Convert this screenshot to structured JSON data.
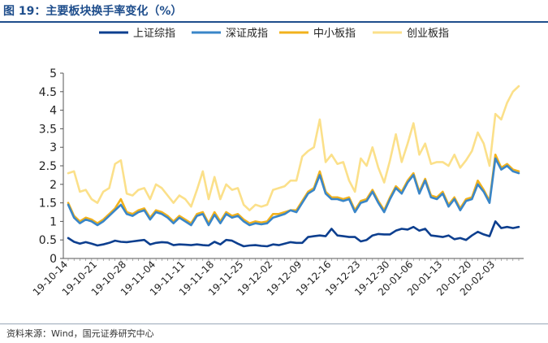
{
  "chart_data": {
    "type": "line",
    "title": "图 19：主要板块换手率变化（%）",
    "source": "资料来源：Wind，国元证券研究中心",
    "xlabel": "",
    "ylabel": "",
    "ylim": [
      0,
      5
    ],
    "yticks": [
      "0",
      "0.5",
      "1",
      "1.5",
      "2",
      "2.5",
      "3",
      "3.5",
      "4",
      "4.5",
      "5"
    ],
    "grid": false,
    "legend_position": "top",
    "x": [
      "19-10-14",
      "19-10-15",
      "19-10-16",
      "19-10-17",
      "19-10-18",
      "19-10-21",
      "19-10-22",
      "19-10-23",
      "19-10-24",
      "19-10-25",
      "19-10-28",
      "19-10-29",
      "19-10-30",
      "19-10-31",
      "19-11-01",
      "19-11-04",
      "19-11-05",
      "19-11-06",
      "19-11-07",
      "19-11-08",
      "19-11-11",
      "19-11-12",
      "19-11-13",
      "19-11-14",
      "19-11-15",
      "19-11-18",
      "19-11-19",
      "19-11-20",
      "19-11-21",
      "19-11-22",
      "19-11-25",
      "19-11-26",
      "19-11-27",
      "19-11-28",
      "19-11-29",
      "19-12-02",
      "19-12-03",
      "19-12-04",
      "19-12-05",
      "19-12-06",
      "19-12-09",
      "19-12-10",
      "19-12-11",
      "19-12-12",
      "19-12-13",
      "19-12-16",
      "19-12-17",
      "19-12-18",
      "19-12-19",
      "19-12-20",
      "19-12-23",
      "19-12-24",
      "19-12-25",
      "19-12-26",
      "19-12-27",
      "19-12-30",
      "19-12-31",
      "20-01-02",
      "20-01-03",
      "20-01-06",
      "20-01-07",
      "20-01-08",
      "20-01-09",
      "20-01-10",
      "20-01-13",
      "20-01-14",
      "20-01-15",
      "20-01-16",
      "20-01-17",
      "20-01-20",
      "20-01-21",
      "20-01-22",
      "20-01-23",
      "20-02-03",
      "20-02-04",
      "20-02-05",
      "20-02-06",
      "20-02-07"
    ],
    "xtick_labels": [
      "19-10-14",
      "19-10-21",
      "19-10-28",
      "19-11-04",
      "19-11-11",
      "19-11-18",
      "19-11-25",
      "19-12-02",
      "19-12-09",
      "19-12-16",
      "19-12-23",
      "19-12-30",
      "20-01-06",
      "20-01-13",
      "20-01-20",
      "20-01-27",
      "20-02-03"
    ],
    "series": [
      {
        "name": "上证综指",
        "color": "#0d3f8f",
        "values": [
          0.55,
          0.45,
          0.4,
          0.44,
          0.4,
          0.35,
          0.38,
          0.42,
          0.48,
          0.45,
          0.44,
          0.46,
          0.48,
          0.5,
          0.38,
          0.42,
          0.44,
          0.43,
          0.36,
          0.38,
          0.37,
          0.36,
          0.38,
          0.36,
          0.35,
          0.45,
          0.38,
          0.5,
          0.48,
          0.4,
          0.33,
          0.35,
          0.36,
          0.34,
          0.33,
          0.38,
          0.36,
          0.4,
          0.44,
          0.42,
          0.42,
          0.58,
          0.6,
          0.62,
          0.6,
          0.8,
          0.62,
          0.6,
          0.58,
          0.58,
          0.46,
          0.5,
          0.62,
          0.66,
          0.65,
          0.65,
          0.75,
          0.8,
          0.78,
          0.85,
          0.75,
          0.8,
          0.62,
          0.6,
          0.58,
          0.62,
          0.52,
          0.55,
          0.5,
          0.62,
          0.72,
          0.65,
          0.6,
          1.0,
          0.82,
          0.85,
          0.82,
          0.85
        ]
      },
      {
        "name": "深证成指",
        "color": "#3a86c8",
        "values": [
          1.45,
          1.1,
          0.95,
          1.05,
          1.0,
          0.9,
          1.0,
          1.15,
          1.3,
          1.45,
          1.2,
          1.15,
          1.25,
          1.3,
          1.05,
          1.25,
          1.2,
          1.1,
          0.95,
          1.1,
          1.0,
          0.9,
          1.15,
          1.2,
          0.9,
          1.18,
          0.95,
          1.2,
          1.1,
          1.15,
          1.0,
          0.9,
          0.95,
          0.92,
          0.95,
          1.1,
          1.15,
          1.2,
          1.3,
          1.25,
          1.5,
          1.75,
          1.85,
          2.25,
          1.75,
          1.6,
          1.6,
          1.55,
          1.6,
          1.25,
          1.5,
          1.55,
          1.8,
          1.5,
          1.25,
          1.6,
          1.9,
          1.75,
          2.05,
          2.25,
          1.75,
          2.1,
          1.65,
          1.6,
          1.75,
          1.4,
          1.6,
          1.3,
          1.55,
          1.6,
          2.0,
          1.8,
          1.5,
          2.7,
          2.4,
          2.5,
          2.35,
          2.3
        ]
      },
      {
        "name": "中小板指",
        "color": "#f2b21c",
        "values": [
          1.5,
          1.15,
          1.0,
          1.1,
          1.05,
          0.95,
          1.05,
          1.2,
          1.35,
          1.6,
          1.25,
          1.2,
          1.3,
          1.35,
          1.1,
          1.3,
          1.25,
          1.15,
          1.0,
          1.15,
          1.05,
          0.95,
          1.2,
          1.25,
          0.95,
          1.25,
          1.0,
          1.25,
          1.15,
          1.2,
          1.05,
          0.95,
          1.0,
          0.97,
          1.0,
          1.2,
          1.2,
          1.25,
          1.3,
          1.3,
          1.55,
          1.8,
          1.9,
          2.35,
          1.8,
          1.65,
          1.65,
          1.6,
          1.65,
          1.3,
          1.55,
          1.6,
          1.85,
          1.55,
          1.3,
          1.65,
          1.95,
          1.8,
          2.1,
          2.3,
          1.8,
          2.15,
          1.7,
          1.65,
          1.8,
          1.45,
          1.65,
          1.35,
          1.6,
          1.65,
          2.1,
          1.85,
          1.55,
          2.8,
          2.45,
          2.55,
          2.4,
          2.35
        ]
      },
      {
        "name": "创业板指",
        "color": "#fbe08a",
        "values": [
          2.3,
          2.35,
          1.8,
          1.85,
          1.6,
          1.5,
          1.8,
          1.9,
          2.55,
          2.65,
          1.75,
          1.7,
          1.85,
          1.9,
          1.6,
          2.0,
          1.9,
          1.7,
          1.5,
          1.7,
          1.6,
          1.4,
          1.85,
          2.35,
          1.6,
          2.2,
          1.6,
          2.0,
          1.85,
          1.9,
          1.45,
          1.3,
          1.45,
          1.4,
          1.45,
          1.85,
          1.9,
          1.95,
          2.1,
          2.1,
          2.75,
          2.9,
          3.0,
          3.75,
          2.6,
          2.8,
          2.55,
          2.6,
          2.1,
          1.8,
          2.7,
          2.5,
          3.0,
          2.45,
          2.05,
          2.65,
          3.35,
          2.6,
          3.1,
          3.65,
          2.8,
          3.1,
          2.55,
          2.6,
          2.6,
          2.5,
          2.8,
          2.45,
          2.65,
          2.9,
          3.4,
          3.1,
          2.5,
          3.9,
          3.75,
          4.2,
          4.5,
          4.65
        ]
      }
    ]
  }
}
